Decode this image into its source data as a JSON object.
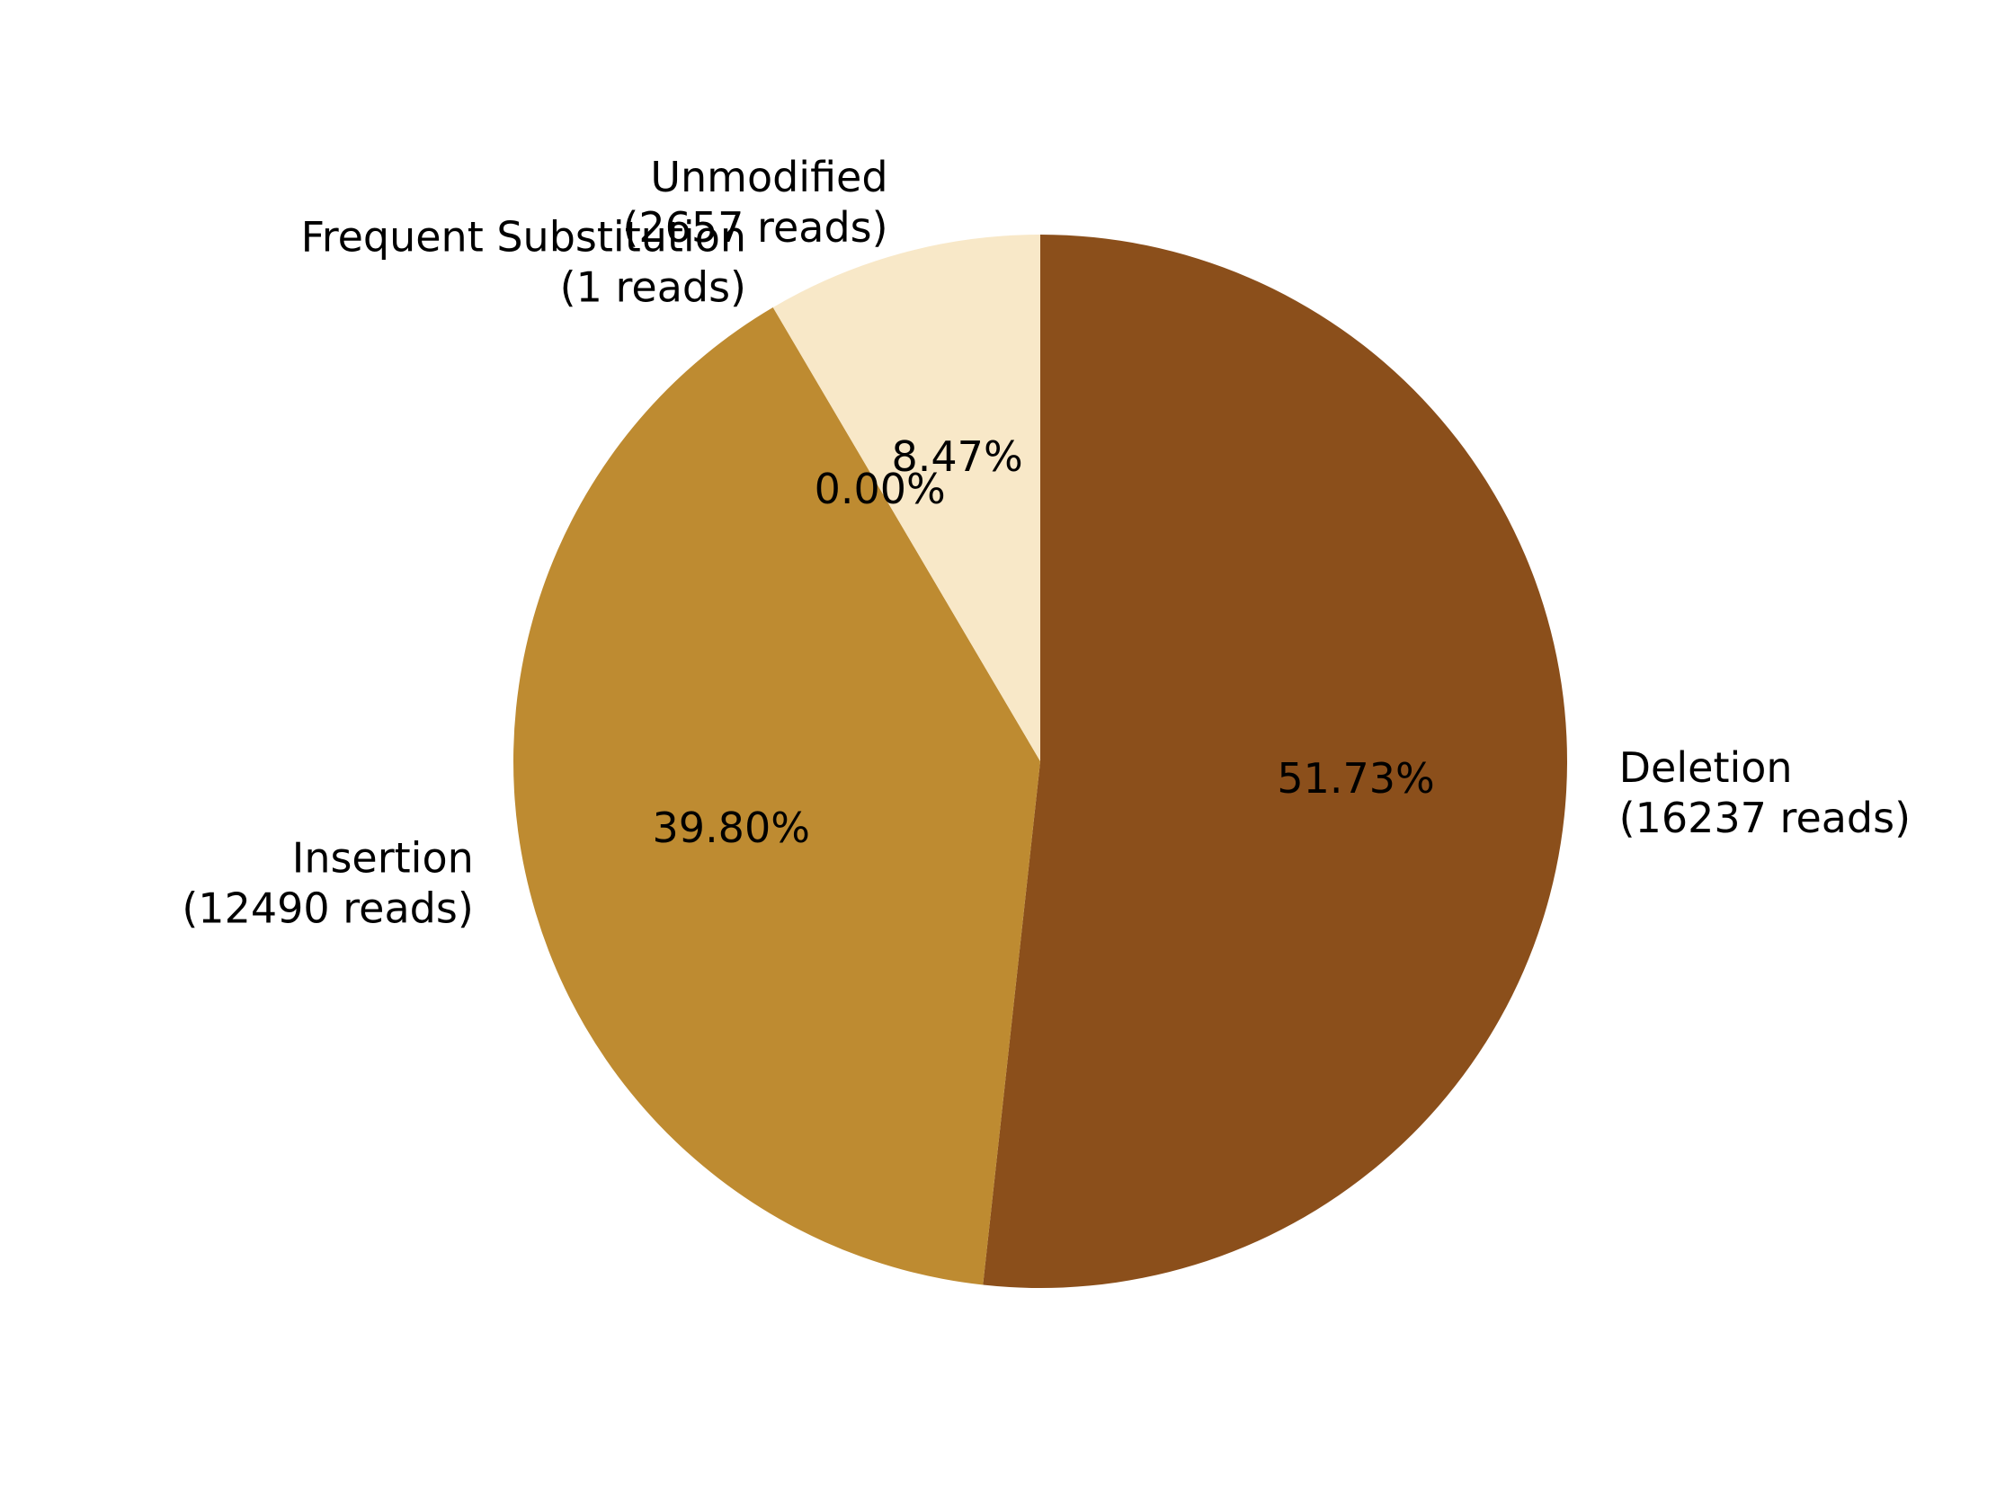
{
  "chart_data": {
    "type": "pie",
    "start_angle_deg": 90,
    "direction": "clockwise",
    "slices": [
      {
        "name": "Deletion",
        "reads_label": "(16237 reads)",
        "value": 16237,
        "percent_label": "51.73%",
        "color": "#8B4F1B"
      },
      {
        "name": "Insertion",
        "reads_label": "(12490 reads)",
        "value": 12490,
        "percent_label": "39.80%",
        "color": "#BE8B31"
      },
      {
        "name": "Frequent Substitution",
        "reads_label": "(1 reads)",
        "value": 1,
        "percent_label": "0.00%",
        "color": "#BE8B31"
      },
      {
        "name": "Unmodified",
        "reads_label": "(2657 reads)",
        "value": 2657,
        "percent_label": "8.47%",
        "color": "#F8E8C8"
      }
    ]
  }
}
